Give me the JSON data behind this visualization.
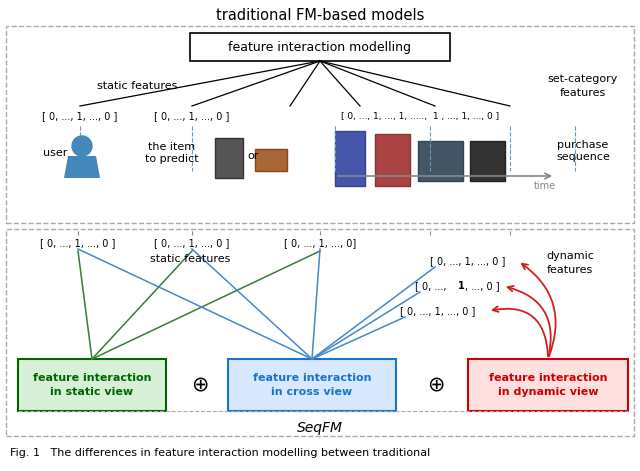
{
  "title_top": "traditional FM-based models",
  "title_bottom": "SeqFM",
  "fig_caption": "Fig. 1   The differences in feature interaction modelling between traditional",
  "top_box_text": "feature interaction modelling",
  "dashed_border_color": "#aaaaaa",
  "static_features_label_top": "static features",
  "set_category_label": "set-category\nfeatures",
  "static_features_label_bottom": "static features",
  "dynamic_features_label": "dynamic\nfeatures",
  "purchase_sequence_label": "purchase\nsequence",
  "user_label": "user",
  "item_label": "the item\nto predict",
  "vector_top_1": "[ 0, ..., 1, ..., 0 ]",
  "vector_top_2": "[ 0, ..., 1, ..., 0 ]",
  "vector_top_3": "[ 0, ..., 1, ..., 1, .....,  1 , ..., 1, ..., 0 ]",
  "vector_bot_1": "[ 0, ..., 1, ..., 0 ]",
  "vector_bot_2": "[ 0, ..., 1, ..., 0 ]",
  "vector_bot_3": "[ 0, ..., 1, ..., 0]",
  "vector_dyn_1": "[ 0, ..., 1, ..., 0 ]",
  "vector_dyn_2_pre": "[ 0, ..., ",
  "vector_dyn_2_bold": "1",
  "vector_dyn_2_post": ", ..., 0 ]",
  "vector_dyn_3": "[ 0, ..., 1, ..., 0 ]",
  "box_static_text": "feature interaction\nin static view",
  "box_cross_text": "feature interaction\nin cross view",
  "box_dynamic_text": "feature interaction\nin dynamic view",
  "box_static_color": "#006400",
  "box_cross_color": "#1874CD",
  "box_dynamic_color": "#CC0000",
  "box_static_bg": "#d8f0d8",
  "box_cross_bg": "#d8e8ff",
  "box_dynamic_bg": "#ffe0e0",
  "line_color_green": "#3a7a3a",
  "line_color_blue": "#4488cc",
  "line_color_red": "#cc2222",
  "dashed_line_color": "#6699bb",
  "time_arrow_color": "#888888",
  "figsize": [
    6.4,
    4.71
  ],
  "dpi": 100
}
